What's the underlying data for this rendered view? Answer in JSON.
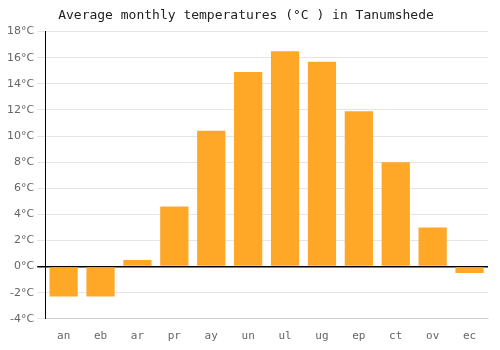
{
  "chart_data": {
    "type": "bar",
    "title": "Average monthly temperatures (°C ) in Tanumshede",
    "categories": [
      "an",
      "eb",
      "ar",
      "pr",
      "ay",
      "un",
      "ul",
      "ug",
      "ep",
      "ct",
      "ov",
      "ec"
    ],
    "values": [
      -2.3,
      -2.3,
      0.5,
      4.6,
      10.4,
      14.9,
      16.5,
      15.7,
      11.9,
      8.0,
      3.0,
      -0.5
    ],
    "color": "#FFA726",
    "ylim": [
      -4,
      18
    ],
    "yticks": [
      {
        "value": -4,
        "label": "-4°C"
      },
      {
        "value": -2,
        "label": "-2°C"
      },
      {
        "value": 0,
        "label": "0°C"
      },
      {
        "value": 2,
        "label": "2°C"
      },
      {
        "value": 4,
        "label": "4°C"
      },
      {
        "value": 6,
        "label": "6°C"
      },
      {
        "value": 8,
        "label": "8°C"
      },
      {
        "value": 10,
        "label": "10°C"
      },
      {
        "value": 12,
        "label": "12°C"
      },
      {
        "value": 14,
        "label": "14°C"
      },
      {
        "value": 16,
        "label": "16°C"
      },
      {
        "value": 18,
        "label": "18°C"
      }
    ],
    "grid": true
  }
}
